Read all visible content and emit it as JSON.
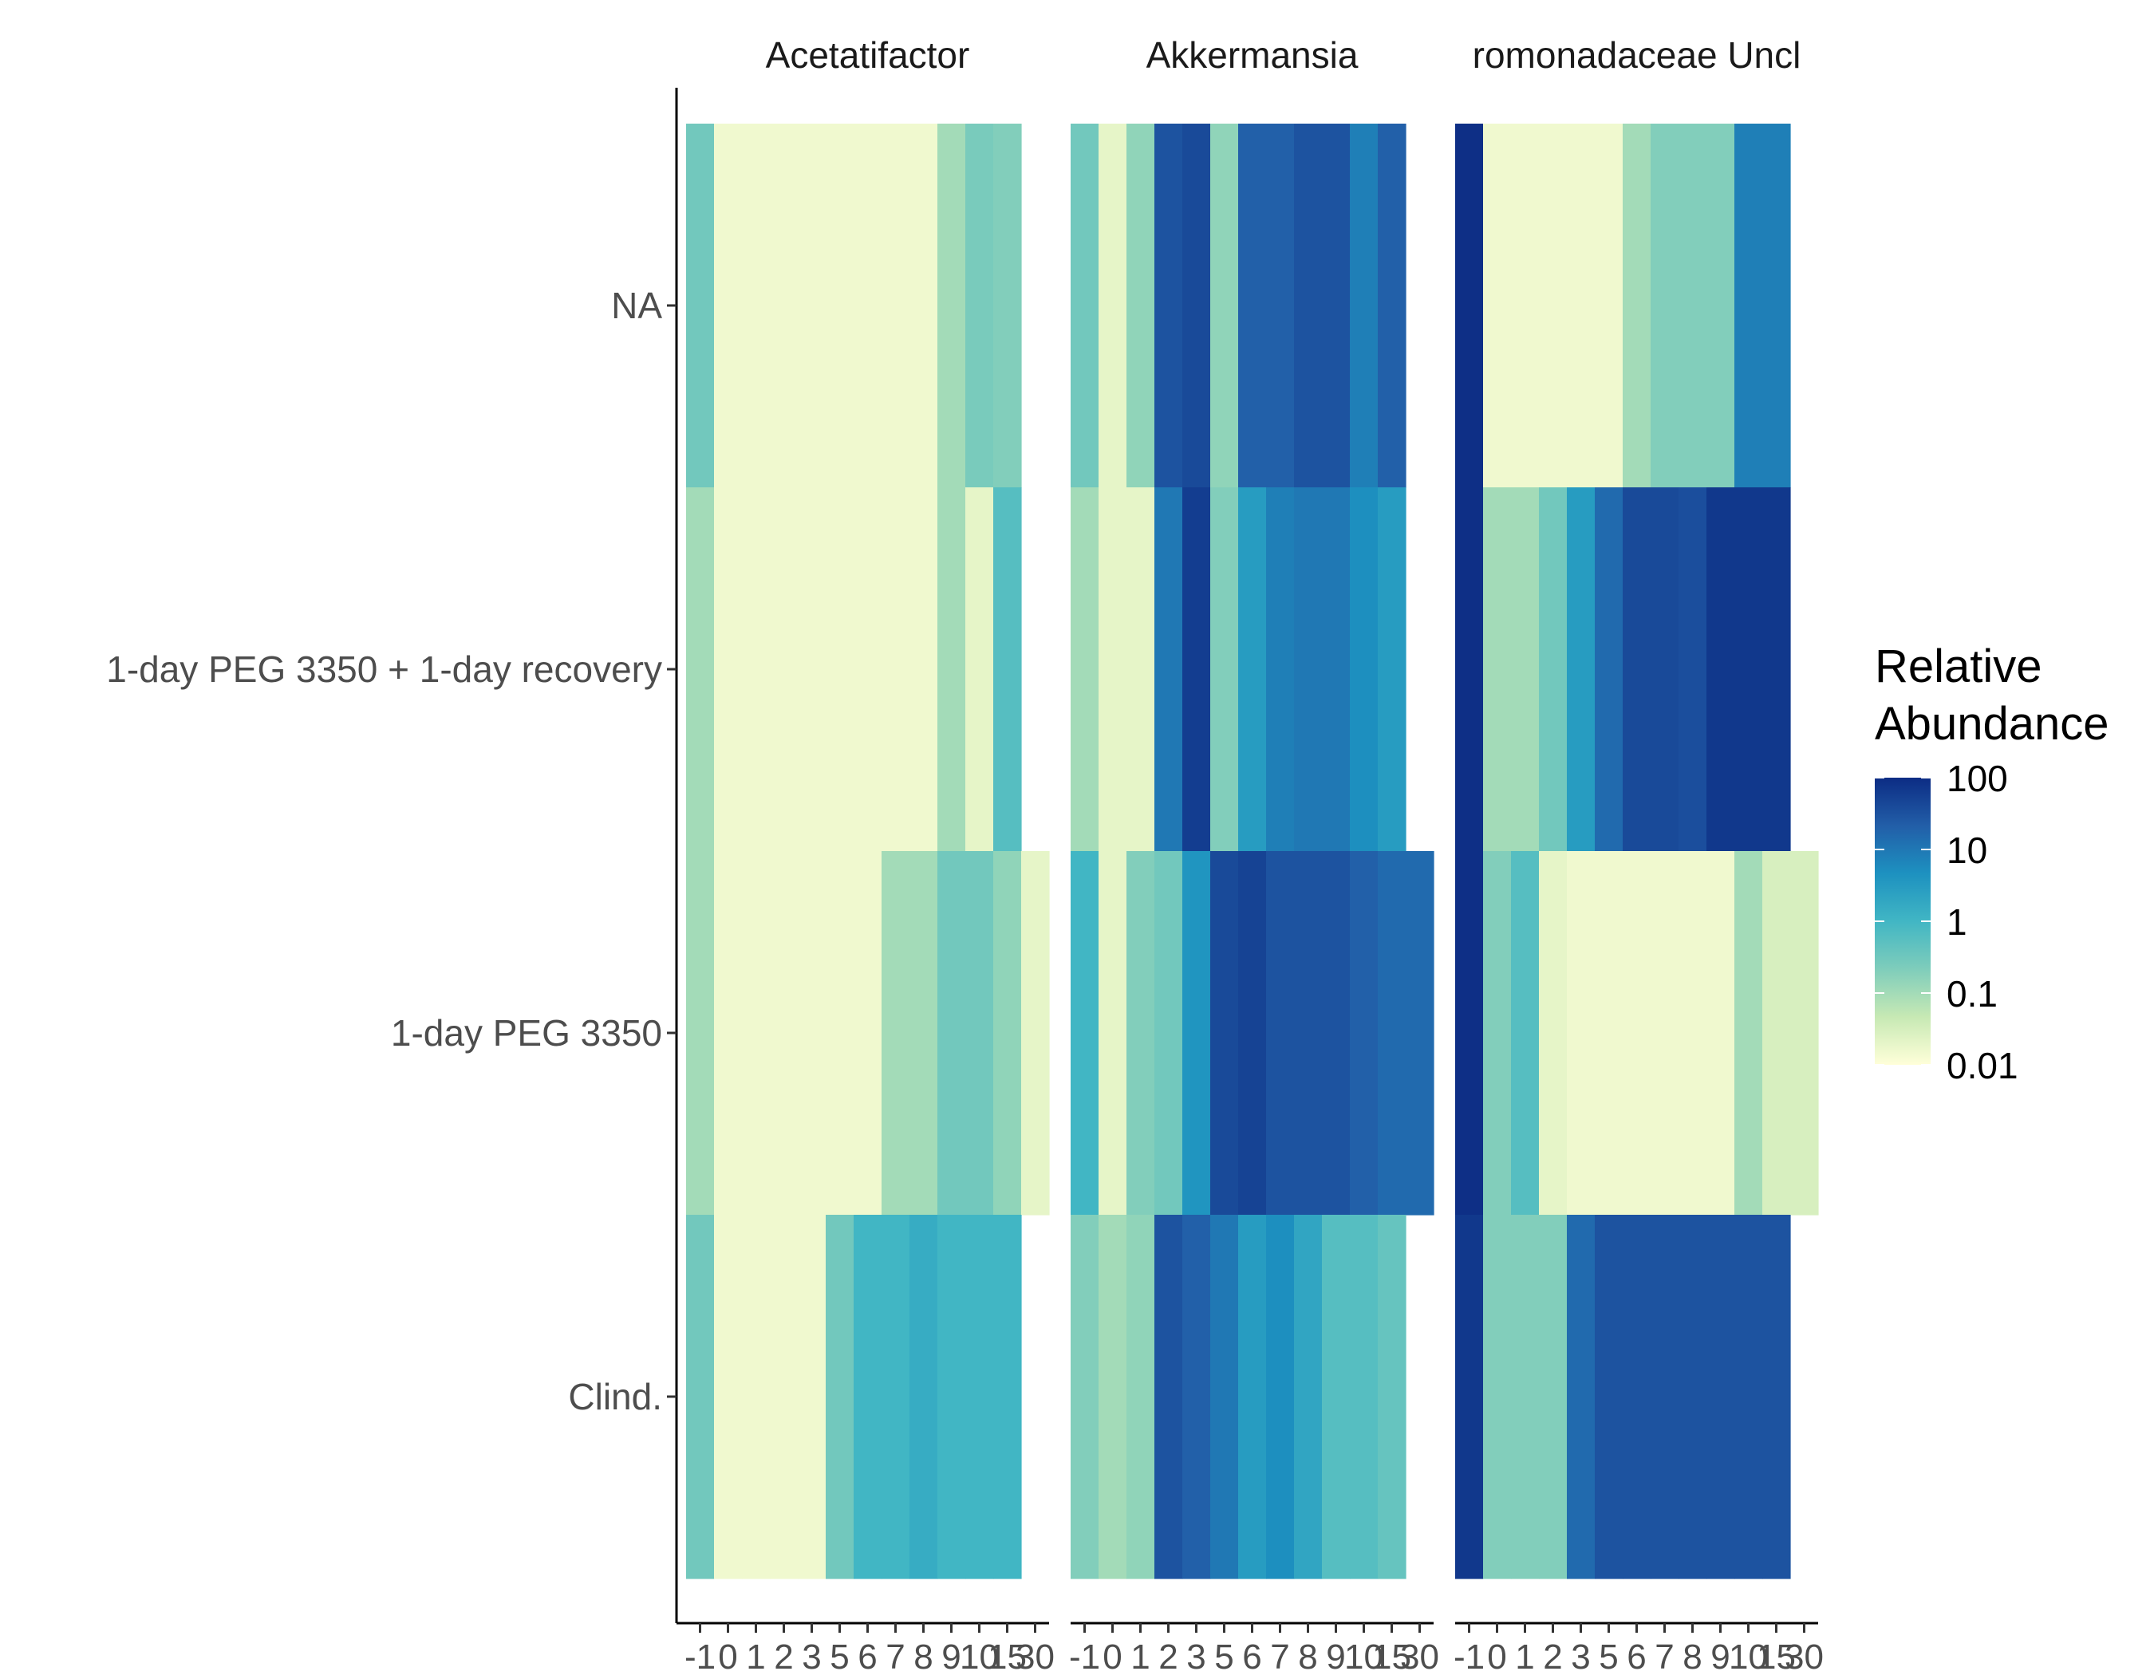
{
  "chart_data": {
    "type": "heatmap",
    "title": "",
    "xlabel": "",
    "ylabel": "",
    "x": [
      "-1",
      "0",
      "1",
      "2",
      "3",
      "5",
      "6",
      "7",
      "8",
      "9",
      "10",
      "15",
      "30"
    ],
    "rows": [
      "NA",
      "1-day PEG 3350 + 1-day recovery",
      "1-day PEG 3350",
      "Clind."
    ],
    "legend": {
      "title_lines": [
        "Relative",
        "Abundance"
      ],
      "ticks": [
        "100",
        "10",
        "1",
        "0.1",
        "0.01"
      ],
      "tick_values": [
        100,
        10,
        1,
        0.1,
        0.01
      ],
      "scale": "log10",
      "colors": [
        "#ffffd9",
        "#c7e9b4",
        "#7fcdbb",
        "#41b6c4",
        "#1d91c0",
        "#225ea8",
        "#0c2c84"
      ],
      "position": "right"
    },
    "facets": [
      {
        "label": "Acetatifactor",
        "values": [
          [
            0.3,
            0.015,
            0.015,
            0.015,
            0.015,
            0.015,
            0.015,
            0.015,
            0.015,
            0.1,
            0.25,
            0.2,
            null
          ],
          [
            0.1,
            0.015,
            0.015,
            0.015,
            0.015,
            0.015,
            0.015,
            0.015,
            0.015,
            0.1,
            0.02,
            0.6,
            null
          ],
          [
            0.1,
            0.015,
            0.015,
            0.015,
            0.015,
            0.015,
            0.015,
            0.1,
            0.1,
            0.3,
            0.3,
            0.15,
            0.02
          ],
          [
            0.3,
            0.015,
            0.015,
            0.015,
            0.015,
            0.3,
            1,
            1,
            1.5,
            1,
            1,
            1,
            null
          ]
        ]
      },
      {
        "label": "Akkermansia",
        "values": [
          [
            0.3,
            0.02,
            0.15,
            30,
            40,
            0.15,
            20,
            20,
            30,
            30,
            8,
            20,
            null
          ],
          [
            0.1,
            0.02,
            0.02,
            10,
            60,
            0.2,
            3,
            8,
            10,
            10,
            5,
            3,
            null
          ],
          [
            1,
            0.02,
            0.2,
            0.3,
            4,
            40,
            50,
            30,
            30,
            30,
            20,
            15,
            15
          ],
          [
            0.2,
            0.1,
            0.15,
            30,
            20,
            10,
            3,
            5,
            2,
            0.6,
            0.6,
            0.4,
            null
          ]
        ]
      },
      {
        "label": "romonadaceae Uncl",
        "values": [
          [
            90,
            0.015,
            0.015,
            0.015,
            0.015,
            0.015,
            0.1,
            0.2,
            0.2,
            0.2,
            8,
            8,
            null
          ],
          [
            90,
            0.1,
            0.1,
            0.3,
            3,
            15,
            40,
            40,
            35,
            70,
            70,
            70,
            null
          ],
          [
            90,
            0.2,
            0.6,
            0.02,
            0.015,
            0.015,
            0.015,
            0.015,
            0.015,
            0.015,
            0.1,
            0.03,
            0.03
          ],
          [
            70,
            0.2,
            0.2,
            0.2,
            15,
            30,
            30,
            30,
            30,
            30,
            30,
            30,
            null
          ]
        ]
      }
    ]
  }
}
